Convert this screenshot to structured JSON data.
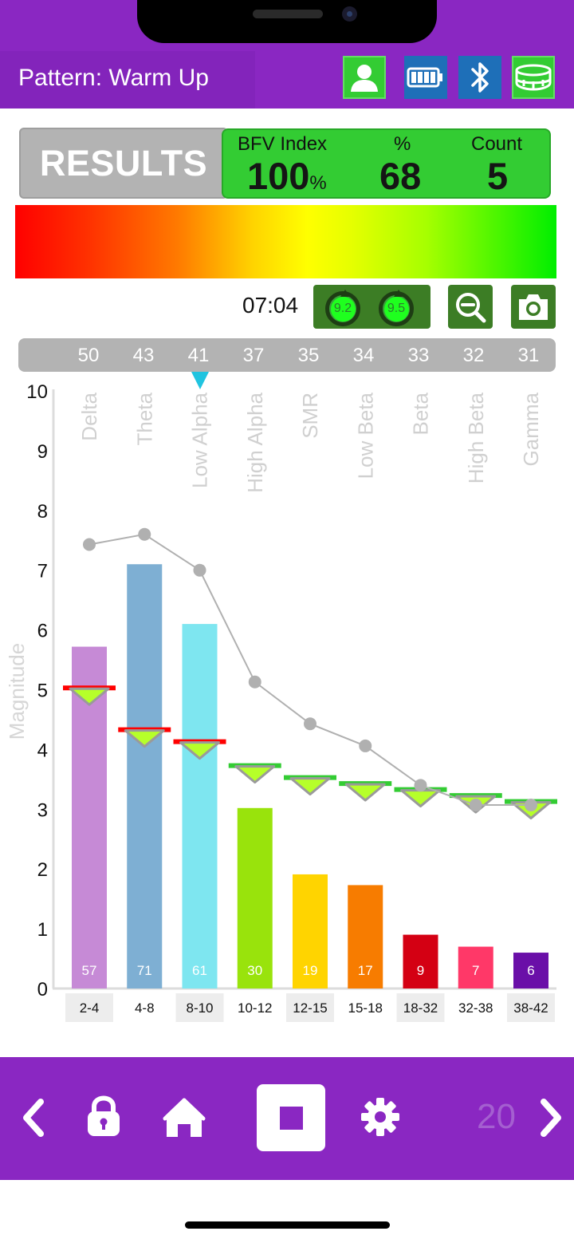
{
  "header": {
    "title": "Pattern: Warm Up",
    "icons": [
      "user-icon",
      "battery-icon",
      "bluetooth-icon",
      "headband-icon"
    ]
  },
  "results": {
    "label": "RESULTS",
    "bfv_label": "BFV Index",
    "bfv_value": "100",
    "bfv_unit": "%",
    "percent_label": "%",
    "percent_value": "68",
    "count_label": "Count",
    "count_value": "5"
  },
  "session": {
    "timer": "07:04",
    "gauge_left": "9.2",
    "gauge_right": "9.5"
  },
  "scores": [
    "50",
    "43",
    "41",
    "37",
    "35",
    "34",
    "33",
    "32",
    "31"
  ],
  "chart_data": {
    "type": "bar",
    "ylabel": "Magnitude",
    "ylim": [
      0,
      10
    ],
    "yticks": [
      0,
      1,
      2,
      3,
      4,
      5,
      6,
      7,
      8,
      9,
      10
    ],
    "categories": [
      "2-4",
      "4-8",
      "8-10",
      "10-12",
      "12-15",
      "15-18",
      "18-32",
      "32-38",
      "38-42"
    ],
    "band_names": [
      "Delta",
      "Theta",
      "Low Alpha",
      "High Alpha",
      "SMR",
      "Low Beta",
      "Beta",
      "High Beta",
      "Gamma"
    ],
    "series": [
      {
        "values": [
          5.72,
          7.1,
          6.1,
          3.02,
          1.91,
          1.73,
          0.9,
          0.7,
          0.6
        ],
        "labels": [
          "57",
          "71",
          "61",
          "30",
          "19",
          "17",
          "9",
          "7",
          "6"
        ],
        "colors": [
          "#c68ad6",
          "#7eafd3",
          "#7ee6f0",
          "#99e30c",
          "#ffd400",
          "#f77c00",
          "#d40013",
          "#ff3868",
          "#6a0fa8"
        ]
      },
      {
        "type": "line",
        "values": [
          7.43,
          7.6,
          7.0,
          5.13,
          4.43,
          4.06,
          3.4,
          3.07,
          3.07
        ],
        "color": "#b0b0b0"
      }
    ],
    "thresholds": {
      "values": [
        5.03,
        4.33,
        4.13,
        3.73,
        3.53,
        3.43,
        3.33,
        3.23,
        3.13
      ],
      "colors": [
        "#ff0000",
        "#ff0000",
        "#ff0000",
        "#33cc33",
        "#33cc33",
        "#33cc33",
        "#33cc33",
        "#33cc33",
        "#33cc33"
      ]
    }
  },
  "bottom_nav": {
    "page_number": "20",
    "items": [
      "back-icon",
      "lock-icon",
      "home-icon",
      "stop-icon",
      "gear-icon",
      "forward-icon"
    ]
  }
}
